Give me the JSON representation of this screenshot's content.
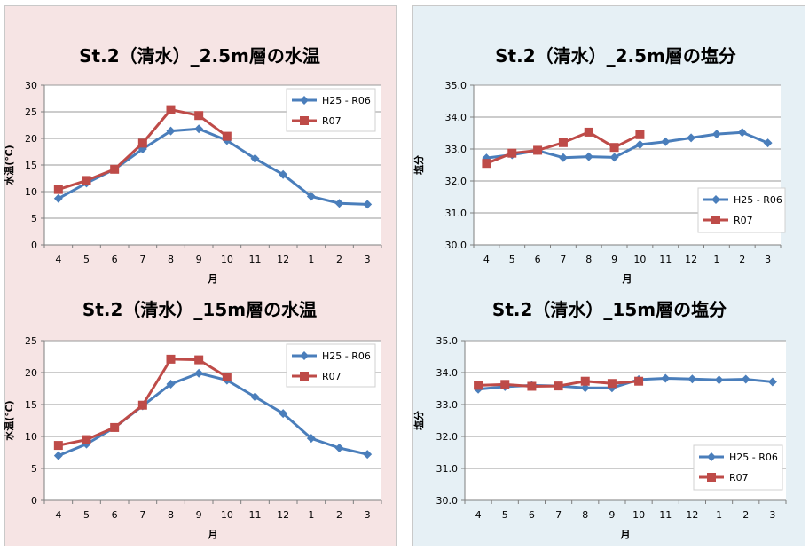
{
  "chart_data": [
    {
      "type": "line",
      "title": "St.2（清水）_2.5m層の水温",
      "xlabel": "月",
      "ylabel": "水温(℃)",
      "categories": [
        "4",
        "5",
        "6",
        "7",
        "8",
        "9",
        "10",
        "11",
        "12",
        "1",
        "2",
        "3"
      ],
      "ylim": [
        0,
        30
      ],
      "yticks": [
        "0",
        "5",
        "10",
        "15",
        "20",
        "25",
        "30"
      ],
      "legend_position": "top-right",
      "series": [
        {
          "name": "H25 - R06",
          "color": "#4a7ebb",
          "marker": "diamond",
          "values": [
            8.7,
            11.6,
            14.2,
            18.0,
            21.4,
            21.8,
            19.6,
            16.2,
            13.2,
            9.1,
            7.8,
            7.6
          ]
        },
        {
          "name": "R07",
          "color": "#be4b48",
          "marker": "square",
          "values": [
            10.4,
            12.1,
            14.2,
            19.1,
            25.4,
            24.3,
            20.4,
            null,
            null,
            null,
            null,
            null
          ]
        }
      ]
    },
    {
      "type": "line",
      "title": "St.2（清水）_2.5m層の塩分",
      "xlabel": "月",
      "ylabel": "塩分",
      "categories": [
        "4",
        "5",
        "6",
        "7",
        "8",
        "9",
        "10",
        "11",
        "12",
        "1",
        "2",
        "3"
      ],
      "ylim": [
        30.0,
        35.0
      ],
      "yticks": [
        "30.0",
        "31.0",
        "32.0",
        "33.0",
        "34.0",
        "35.0"
      ],
      "legend_position": "bottom-right",
      "series": [
        {
          "name": "H25 - R06",
          "color": "#4a7ebb",
          "marker": "diamond",
          "values": [
            32.72,
            32.82,
            32.95,
            32.73,
            32.76,
            32.74,
            33.14,
            33.23,
            33.35,
            33.47,
            33.52,
            33.19
          ]
        },
        {
          "name": "R07",
          "color": "#be4b48",
          "marker": "square",
          "values": [
            32.55,
            32.87,
            32.96,
            33.2,
            33.53,
            33.05,
            33.45,
            null,
            null,
            null,
            null,
            null
          ]
        }
      ]
    },
    {
      "type": "line",
      "title": "St.2（清水）_15m層の水温",
      "xlabel": "月",
      "ylabel": "水温(℃)",
      "categories": [
        "4",
        "5",
        "6",
        "7",
        "8",
        "9",
        "10",
        "11",
        "12",
        "1",
        "2",
        "3"
      ],
      "ylim": [
        0,
        25
      ],
      "yticks": [
        "0",
        "5",
        "10",
        "15",
        "20",
        "25"
      ],
      "legend_position": "top-right",
      "series": [
        {
          "name": "H25 - R06",
          "color": "#4a7ebb",
          "marker": "diamond",
          "values": [
            7.0,
            8.8,
            11.4,
            14.8,
            18.2,
            19.9,
            18.8,
            16.2,
            13.6,
            9.7,
            8.2,
            7.2
          ]
        },
        {
          "name": "R07",
          "color": "#be4b48",
          "marker": "square",
          "values": [
            8.6,
            9.5,
            11.4,
            14.9,
            22.1,
            22.0,
            19.3,
            null,
            null,
            null,
            null,
            null
          ]
        }
      ]
    },
    {
      "type": "line",
      "title": "St.2（清水）_15m層の塩分",
      "xlabel": "月",
      "ylabel": "塩分",
      "categories": [
        "4",
        "5",
        "6",
        "7",
        "8",
        "9",
        "10",
        "11",
        "12",
        "1",
        "2",
        "3"
      ],
      "ylim": [
        30.0,
        35.0
      ],
      "yticks": [
        "30.0",
        "31.0",
        "32.0",
        "33.0",
        "34.0",
        "35.0"
      ],
      "legend_position": "bottom-right",
      "series": [
        {
          "name": "H25 - R06",
          "color": "#4a7ebb",
          "marker": "diamond",
          "values": [
            33.48,
            33.56,
            33.6,
            33.58,
            33.52,
            33.52,
            33.78,
            33.82,
            33.8,
            33.77,
            33.79,
            33.71
          ]
        },
        {
          "name": "R07",
          "color": "#be4b48",
          "marker": "square",
          "values": [
            33.6,
            33.63,
            33.57,
            33.58,
            33.73,
            33.66,
            33.73,
            null,
            null,
            null,
            null,
            null
          ]
        }
      ]
    }
  ]
}
